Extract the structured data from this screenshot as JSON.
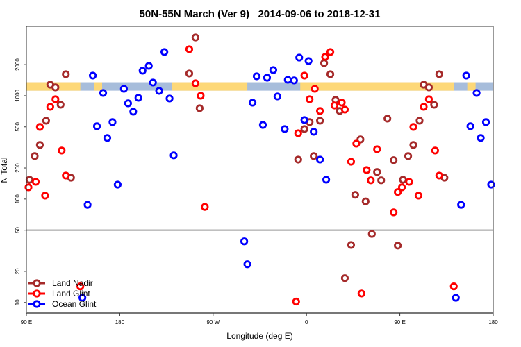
{
  "chart_data": {
    "type": "scatter",
    "title": "50N-55N March (Ver 9)   2014-09-06 to 2018-12-31",
    "xlabel": "Longitude (deg E)",
    "ylabel": "N Total",
    "x_scale": "longitude, wrapped; 90E through 180, 90W, 0, to 90E and 180",
    "xlim_unwrapped": [
      90,
      540
    ],
    "x_ticks": [
      {
        "value": 90,
        "label": "90 E"
      },
      {
        "value": 180,
        "label": "180"
      },
      {
        "value": 270,
        "label": "90 W"
      },
      {
        "value": 360,
        "label": "0"
      },
      {
        "value": 450,
        "label": "90 E"
      },
      {
        "value": 540,
        "label": "180"
      }
    ],
    "y_scale": "log",
    "ylim": [
      7.9,
      4690
    ],
    "y_ticks": [
      {
        "value": 10,
        "label": "10"
      },
      {
        "value": 20,
        "label": "20"
      },
      {
        "value": 50,
        "label": "50"
      },
      {
        "value": 100,
        "label": "100"
      },
      {
        "value": 200,
        "label": "200"
      },
      {
        "value": 500,
        "label": "500"
      },
      {
        "value": 1000,
        "label": "1000"
      },
      {
        "value": 2000,
        "label": "2000"
      }
    ],
    "reference_line": 50,
    "grid": false,
    "legend_position": "bottom-left",
    "land_mask_band": {
      "value_range": [
        1120,
        1350
      ],
      "land_color": "#FDD878",
      "ocean_color": "#A7BDDB",
      "land_segments_lon": [
        [
          -130,
          -57
        ],
        [
          -6,
          142
        ],
        [
          155,
          163
        ]
      ]
    },
    "series": [
      {
        "name": "Land Nadir",
        "color": "#A52A2A",
        "points": [
          [
            93,
            154
          ],
          [
            98,
            261
          ],
          [
            103,
            334
          ],
          [
            109,
            573
          ],
          [
            113,
            1280
          ],
          [
            118,
            1205
          ],
          [
            123,
            818
          ],
          [
            128,
            1615
          ],
          [
            133,
            161
          ],
          [
            -107,
            3660
          ],
          [
            -113,
            1640
          ],
          [
            -103,
            757
          ],
          [
            17,
            2067
          ],
          [
            23,
            1615
          ],
          [
            28,
            912
          ],
          [
            32,
            712
          ],
          [
            3,
            556
          ],
          [
            -2,
            476
          ],
          [
            13,
            573
          ],
          [
            -8,
            241
          ],
          [
            7,
            261
          ],
          [
            78,
            601
          ],
          [
            52,
            378
          ],
          [
            84,
            238
          ],
          [
            68,
            183
          ],
          [
            72,
            152
          ],
          [
            47,
            110
          ],
          [
            57,
            95
          ],
          [
            37,
            17.2
          ],
          [
            43,
            36
          ],
          [
            63,
            46
          ],
          [
            88,
            35.5
          ]
        ]
      },
      {
        "name": "Land Glint",
        "color": "#FF0000",
        "points": [
          [
            92,
            130
          ],
          [
            99,
            147
          ],
          [
            103,
            499
          ],
          [
            108,
            108
          ],
          [
            113,
            781
          ],
          [
            118,
            925
          ],
          [
            124,
            295
          ],
          [
            128,
            169
          ],
          [
            142,
            14.3
          ],
          [
            -113,
            2818
          ],
          [
            -107,
            1320
          ],
          [
            -102,
            1000
          ],
          [
            -98,
            84
          ],
          [
            -2,
            1566
          ],
          [
            8,
            1167
          ],
          [
            3,
            925
          ],
          [
            13,
            712
          ],
          [
            -8,
            434
          ],
          [
            18,
            2377
          ],
          [
            23,
            2650
          ],
          [
            27,
            805
          ],
          [
            34,
            857
          ],
          [
            37,
            734
          ],
          [
            -10,
            10.2
          ],
          [
            48,
            344
          ],
          [
            68,
            304
          ],
          [
            43,
            230
          ],
          [
            58,
            191
          ],
          [
            62,
            152
          ],
          [
            88,
            117
          ],
          [
            84,
            74.5
          ],
          [
            53,
            12.2
          ]
        ]
      },
      {
        "name": "Ocean Glint",
        "color": "#0000FF",
        "points": [
          [
            144,
            11.1
          ],
          [
            149,
            88
          ],
          [
            154,
            1566
          ],
          [
            164,
            1064
          ],
          [
            158,
            507
          ],
          [
            168,
            390
          ],
          [
            173,
            556
          ],
          [
            178,
            138
          ],
          [
            -176,
            1167
          ],
          [
            -172,
            844
          ],
          [
            -167,
            701
          ],
          [
            -162,
            955
          ],
          [
            -158,
            1745
          ],
          [
            -152,
            1944
          ],
          [
            -148,
            1342
          ],
          [
            -142,
            1114
          ],
          [
            -137,
            2650
          ],
          [
            -132,
            940
          ],
          [
            -128,
            265
          ],
          [
            -60,
            39
          ],
          [
            -57,
            23.4
          ],
          [
            -52,
            857
          ],
          [
            -48,
            1542
          ],
          [
            -42,
            522
          ],
          [
            -38,
            1494
          ],
          [
            -32,
            1771
          ],
          [
            -28,
            985
          ],
          [
            -21,
            476
          ],
          [
            -18,
            1427
          ],
          [
            -12,
            1406
          ],
          [
            -7,
            2339
          ],
          [
            2,
            2167
          ],
          [
            -2,
            582
          ],
          [
            7,
            448
          ],
          [
            13,
            241
          ],
          [
            19,
            154
          ]
        ]
      }
    ]
  }
}
